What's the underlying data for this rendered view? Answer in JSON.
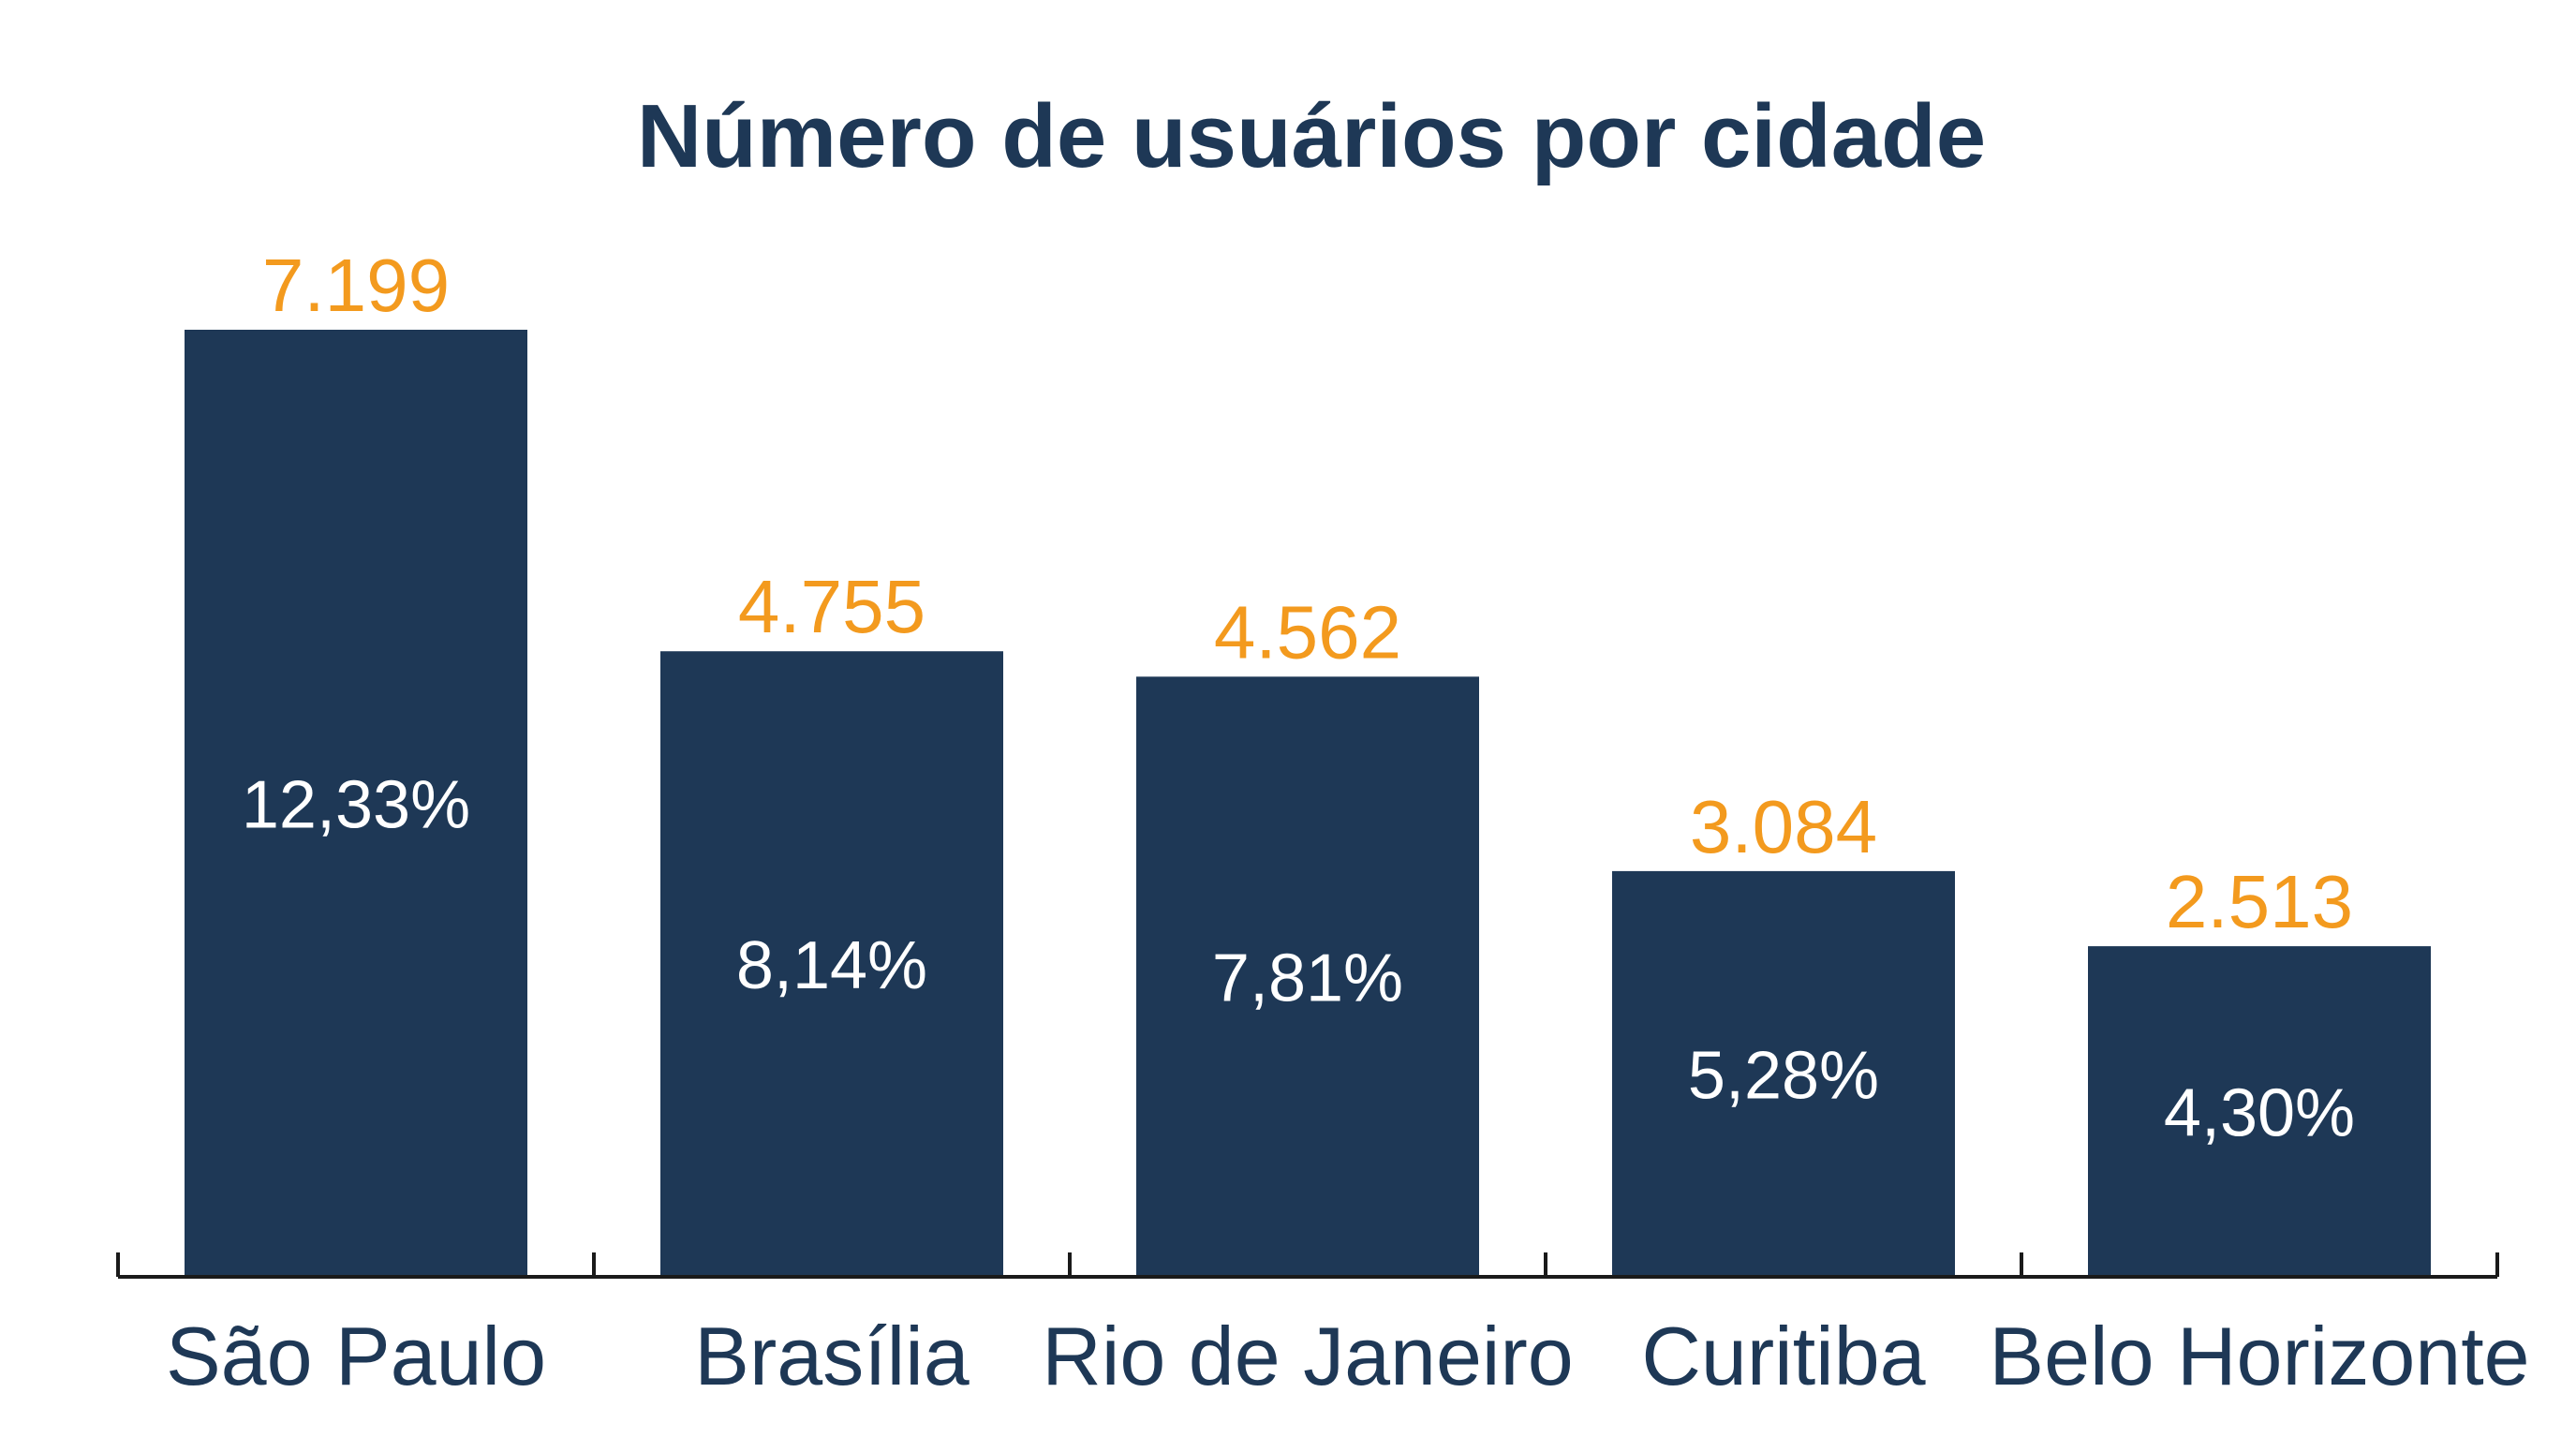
{
  "chart_data": {
    "type": "bar",
    "title": "Número de usuários por cidade",
    "categories": [
      "São Paulo",
      "Brasília",
      "Rio de Janeiro",
      "Curitiba",
      "Belo Horizonte"
    ],
    "values": [
      7199,
      4755,
      4562,
      3084,
      2513
    ],
    "value_labels": [
      "7.199",
      "4.755",
      "4.562",
      "3.084",
      "2.513"
    ],
    "percent_labels": [
      "12,33%",
      "8,14%",
      "7,81%",
      "5,28%",
      "4,30%"
    ],
    "xlabel": "",
    "ylabel": "",
    "ylim": [
      0,
      7199
    ],
    "grid": false,
    "legend": "none",
    "colors": {
      "bar": "#1e3856",
      "value_label": "#f39a1e",
      "percent_label": "#ffffff",
      "axis": "#1a1a1a",
      "title": "#1e3856"
    }
  }
}
